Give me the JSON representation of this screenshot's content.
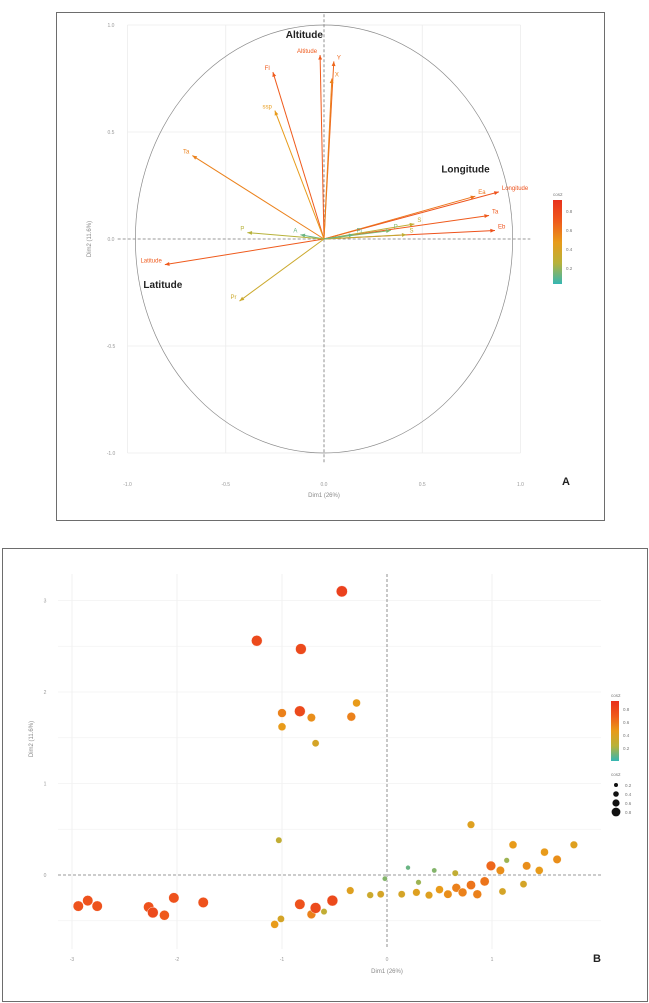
{
  "chart_data": [
    {
      "panel_label": "A",
      "type": "scatter",
      "subtype": "pca-variable-correlation-circle",
      "xlabel": "Dim1 (26%)",
      "ylabel": "Dim2 (11.6%)",
      "xlim": [
        -1.0,
        1.0
      ],
      "ylim": [
        -1.0,
        1.0
      ],
      "xticks": [
        "-1.0",
        "-0.5",
        "0.0",
        "0.5",
        "1.0"
      ],
      "yticks": [
        "1.0",
        "0.5",
        "0.0",
        "-0.5",
        "-1.0"
      ],
      "grid": true,
      "highlight_labels": [
        {
          "text": "Altitude",
          "x": -0.1,
          "y": 0.94
        },
        {
          "text": "Longitude",
          "x": 0.72,
          "y": 0.31
        },
        {
          "text": "Latitude",
          "x": -0.82,
          "y": -0.23
        }
      ],
      "color_legend": {
        "title": "cos2",
        "ticks": [
          "0.8",
          "0.6",
          "0.4",
          "0.2"
        ],
        "colors": [
          "#35b6b3",
          "#b7b23a",
          "#e89b1a",
          "#ef5a1c",
          "#e8311d"
        ]
      },
      "variables": [
        {
          "label": "Altitude",
          "x": -0.02,
          "y": 0.86,
          "cos2": 0.75
        },
        {
          "label": "Y",
          "x": 0.05,
          "y": 0.83,
          "cos2": 0.7
        },
        {
          "label": "X",
          "x": 0.04,
          "y": 0.75,
          "cos2": 0.6
        },
        {
          "label": "FI",
          "x": -0.26,
          "y": 0.78,
          "cos2": 0.75
        },
        {
          "label": "ssp",
          "x": -0.25,
          "y": 0.6,
          "cos2": 0.5
        },
        {
          "label": "Ta",
          "x": -0.67,
          "y": 0.39,
          "cos2": 0.6
        },
        {
          "label": "Longitude",
          "x": 0.89,
          "y": 0.22,
          "cos2": 0.8
        },
        {
          "label": "Ea",
          "x": 0.77,
          "y": 0.2,
          "cos2": 0.65
        },
        {
          "label": "Ta",
          "x": 0.84,
          "y": 0.11,
          "cos2": 0.75
        },
        {
          "label": "Eb",
          "x": 0.87,
          "y": 0.04,
          "cos2": 0.8
        },
        {
          "label": "S",
          "x": 0.46,
          "y": 0.07,
          "cos2": 0.3
        },
        {
          "label": "S",
          "x": 0.42,
          "y": 0.02,
          "cos2": 0.3
        },
        {
          "label": "P",
          "x": 0.34,
          "y": 0.04,
          "cos2": 0.15
        },
        {
          "label": "Pi",
          "x": 0.15,
          "y": 0.02,
          "cos2": 0.1
        },
        {
          "label": "A",
          "x": -0.12,
          "y": 0.02,
          "cos2": 0.1
        },
        {
          "label": "Latitude",
          "x": -0.81,
          "y": -0.12,
          "cos2": 0.75
        },
        {
          "label": "Pr",
          "x": -0.43,
          "y": -0.29,
          "cos2": 0.35
        },
        {
          "label": "P",
          "x": -0.39,
          "y": 0.03,
          "cos2": 0.25
        }
      ]
    },
    {
      "panel_label": "B",
      "type": "scatter",
      "subtype": "pca-individuals",
      "xlabel": "Dim1 (26%)",
      "ylabel": "Dim2 (11.6%)",
      "xlim": [
        -3.1,
        2.0
      ],
      "ylim": [
        -0.88,
        3.35
      ],
      "xticks": [
        "-3",
        "-2",
        "-1",
        "0",
        "1"
      ],
      "yticks": [
        "3",
        "2",
        "1",
        "0"
      ],
      "grid": true,
      "color_legend": {
        "title": "cos2",
        "ticks": [
          "0.8",
          "0.6",
          "0.4",
          "0.2"
        ],
        "colors": [
          "#35b6b3",
          "#b7b23a",
          "#e89b1a",
          "#ef5a1c",
          "#e8311d"
        ]
      },
      "size_legend": {
        "title": "cos2",
        "ticks": [
          "0.2",
          "0.4",
          "0.6",
          "0.8"
        ]
      },
      "points": [
        {
          "x": -0.43,
          "y": 3.1,
          "cos2": 0.9
        },
        {
          "x": -1.24,
          "y": 2.56,
          "cos2": 0.85
        },
        {
          "x": -0.82,
          "y": 2.47,
          "cos2": 0.85
        },
        {
          "x": -0.83,
          "y": 1.79,
          "cos2": 0.85
        },
        {
          "x": -1.0,
          "y": 1.77,
          "cos2": 0.6
        },
        {
          "x": -0.72,
          "y": 1.72,
          "cos2": 0.55
        },
        {
          "x": -0.34,
          "y": 1.73,
          "cos2": 0.6
        },
        {
          "x": -1.0,
          "y": 1.62,
          "cos2": 0.5
        },
        {
          "x": -0.29,
          "y": 1.88,
          "cos2": 0.5
        },
        {
          "x": -0.68,
          "y": 1.44,
          "cos2": 0.4
        },
        {
          "x": -1.03,
          "y": 0.38,
          "cos2": 0.3
        },
        {
          "x": -2.85,
          "y": -0.28,
          "cos2": 0.8
        },
        {
          "x": -2.94,
          "y": -0.34,
          "cos2": 0.8
        },
        {
          "x": -2.76,
          "y": -0.34,
          "cos2": 0.8
        },
        {
          "x": -2.27,
          "y": -0.35,
          "cos2": 0.8
        },
        {
          "x": -2.23,
          "y": -0.41,
          "cos2": 0.85
        },
        {
          "x": -2.12,
          "y": -0.44,
          "cos2": 0.75
        },
        {
          "x": -2.03,
          "y": -0.25,
          "cos2": 0.8
        },
        {
          "x": -1.75,
          "y": -0.3,
          "cos2": 0.8
        },
        {
          "x": -1.07,
          "y": -0.54,
          "cos2": 0.5
        },
        {
          "x": -1.01,
          "y": -0.48,
          "cos2": 0.4
        },
        {
          "x": -0.83,
          "y": -0.32,
          "cos2": 0.8
        },
        {
          "x": -0.72,
          "y": -0.43,
          "cos2": 0.6
        },
        {
          "x": -0.68,
          "y": -0.36,
          "cos2": 0.85
        },
        {
          "x": -0.52,
          "y": -0.28,
          "cos2": 0.85
        },
        {
          "x": -0.6,
          "y": -0.4,
          "cos2": 0.3
        },
        {
          "x": -0.35,
          "y": -0.17,
          "cos2": 0.45
        },
        {
          "x": -0.16,
          "y": -0.22,
          "cos2": 0.35
        },
        {
          "x": -0.06,
          "y": -0.21,
          "cos2": 0.4
        },
        {
          "x": 0.14,
          "y": -0.21,
          "cos2": 0.4
        },
        {
          "x": 0.28,
          "y": -0.19,
          "cos2": 0.45
        },
        {
          "x": 0.4,
          "y": -0.22,
          "cos2": 0.45
        },
        {
          "x": 0.5,
          "y": -0.16,
          "cos2": 0.5
        },
        {
          "x": 0.58,
          "y": -0.21,
          "cos2": 0.55
        },
        {
          "x": 0.66,
          "y": -0.14,
          "cos2": 0.6
        },
        {
          "x": 0.72,
          "y": -0.19,
          "cos2": 0.6
        },
        {
          "x": 0.8,
          "y": -0.11,
          "cos2": 0.65
        },
        {
          "x": 0.86,
          "y": -0.21,
          "cos2": 0.6
        },
        {
          "x": 0.93,
          "y": -0.07,
          "cos2": 0.65
        },
        {
          "x": 0.99,
          "y": 0.1,
          "cos2": 0.7
        },
        {
          "x": 1.08,
          "y": 0.05,
          "cos2": 0.55
        },
        {
          "x": 1.2,
          "y": 0.33,
          "cos2": 0.5
        },
        {
          "x": 1.33,
          "y": 0.1,
          "cos2": 0.55
        },
        {
          "x": 1.5,
          "y": 0.25,
          "cos2": 0.5
        },
        {
          "x": 1.62,
          "y": 0.17,
          "cos2": 0.55
        },
        {
          "x": 1.78,
          "y": 0.33,
          "cos2": 0.45
        },
        {
          "x": 1.45,
          "y": 0.05,
          "cos2": 0.5
        },
        {
          "x": 1.3,
          "y": -0.1,
          "cos2": 0.4
        },
        {
          "x": 1.1,
          "y": -0.18,
          "cos2": 0.4
        },
        {
          "x": 0.3,
          "y": -0.08,
          "cos2": 0.2
        },
        {
          "x": 0.45,
          "y": 0.05,
          "cos2": 0.15
        },
        {
          "x": 0.2,
          "y": 0.08,
          "cos2": 0.1
        },
        {
          "x": -0.02,
          "y": -0.04,
          "cos2": 0.15
        },
        {
          "x": 1.14,
          "y": 0.16,
          "cos2": 0.2
        },
        {
          "x": 0.8,
          "y": 0.55,
          "cos2": 0.45
        },
        {
          "x": 0.65,
          "y": 0.02,
          "cos2": 0.3
        }
      ]
    }
  ]
}
